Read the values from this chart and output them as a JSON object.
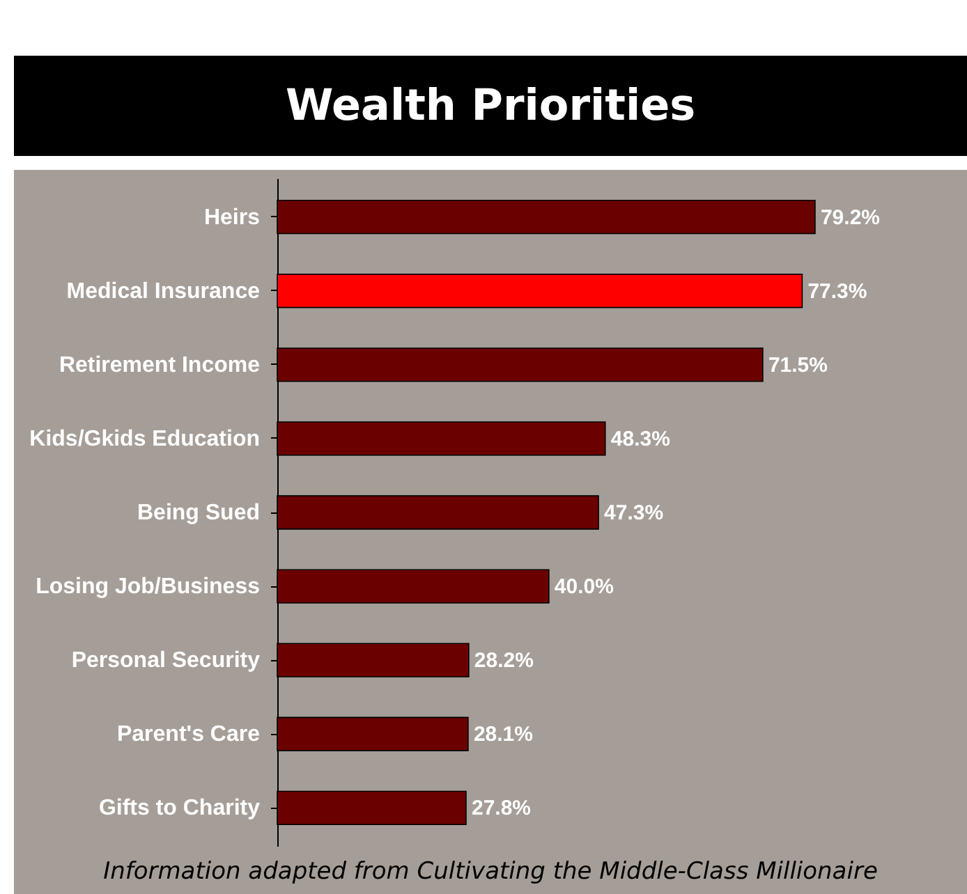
{
  "chart_data": {
    "type": "bar",
    "orientation": "horizontal",
    "title": "Wealth Priorities",
    "categories": [
      "Heirs",
      "Medical Insurance",
      "Retirement Income",
      "Kids/Gkids Education",
      "Being Sued",
      "Losing Job/Business",
      "Personal Security",
      "Parent's Care",
      "Gifts to Charity"
    ],
    "values": [
      79.2,
      77.3,
      71.5,
      48.3,
      47.3,
      40.0,
      28.2,
      28.1,
      27.8
    ],
    "colors": [
      "#6b0000",
      "#ff0000",
      "#6b0000",
      "#6b0000",
      "#6b0000",
      "#6b0000",
      "#6b0000",
      "#6b0000",
      "#6b0000"
    ],
    "value_labels": [
      "79.2%",
      "77.3%",
      "71.5%",
      "48.3%",
      "47.3%",
      "40.0%",
      "28.2%",
      "28.1%",
      "27.8%"
    ],
    "annotations": [
      "Information adapted from Cultivating the Middle-Class Millionaire"
    ]
  }
}
